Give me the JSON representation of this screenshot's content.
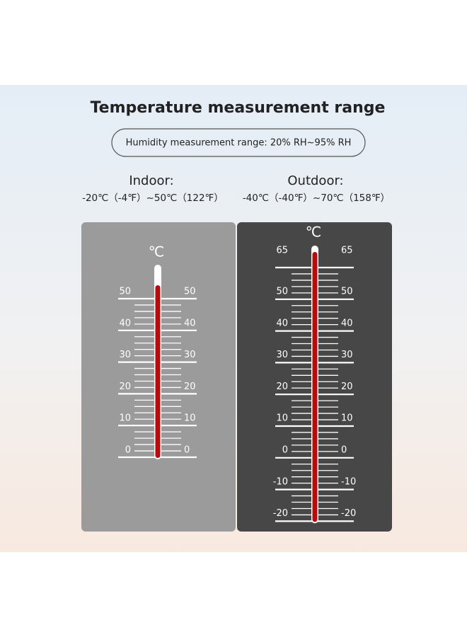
{
  "title": "Temperature measurement range",
  "humidity": "Humidity measurement range: 20% RH~95% RH",
  "indoor": {
    "label": "Indoor:",
    "range": "-20℃（-4℉）~50℃（122℉）",
    "unit": "℃",
    "scale": [
      "50",
      "40",
      "30",
      "20",
      "10",
      "0"
    ]
  },
  "outdoor": {
    "label": "Outdoor:",
    "range": "-40℃（-40℉）~70℃（158℉）",
    "unit": "℃",
    "scale": [
      "65",
      "50",
      "40",
      "30",
      "20",
      "10",
      "0",
      "-10",
      "-20"
    ]
  }
}
